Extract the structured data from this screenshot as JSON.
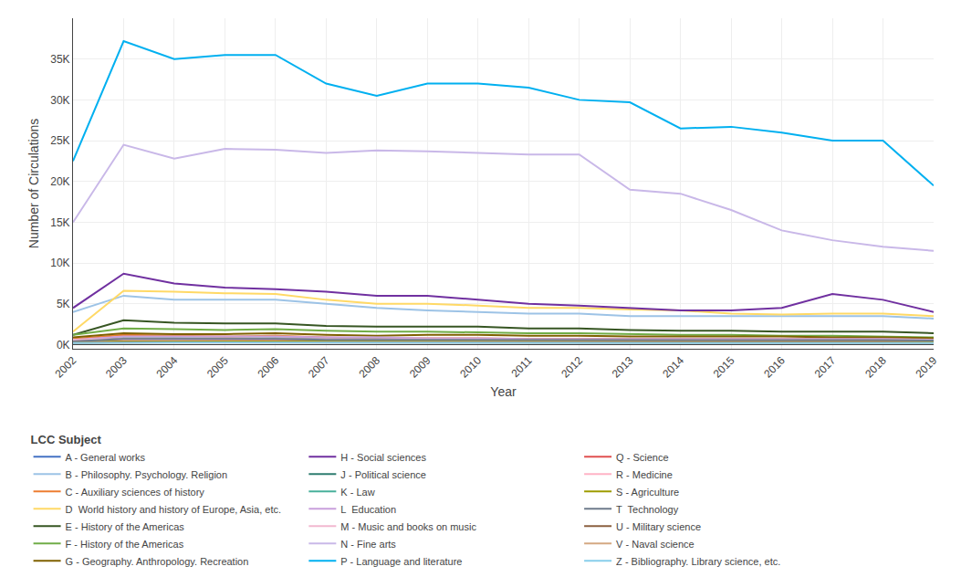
{
  "chart_data": {
    "type": "line",
    "xlabel": "Year",
    "ylabel": "Number of Circulations",
    "legend_title": "LCC Subject",
    "legend": "bottom",
    "grid": true,
    "x": [
      2002,
      2003,
      2004,
      2005,
      2006,
      2007,
      2008,
      2009,
      2010,
      2011,
      2012,
      2013,
      2014,
      2015,
      2016,
      2017,
      2018,
      2019
    ],
    "xlim": [
      2002,
      2019
    ],
    "xticks": [
      2002,
      2003,
      2004,
      2005,
      2006,
      2007,
      2008,
      2009,
      2010,
      2011,
      2012,
      2013,
      2014,
      2015,
      2016,
      2017,
      2018,
      2019
    ],
    "ylim": [
      -500,
      40000
    ],
    "yticks": [
      {
        "value": 0,
        "label": "0K"
      },
      {
        "value": 5000,
        "label": "5K"
      },
      {
        "value": 10000,
        "label": "10K"
      },
      {
        "value": 15000,
        "label": "15K"
      },
      {
        "value": 20000,
        "label": "20K"
      },
      {
        "value": 25000,
        "label": "25K"
      },
      {
        "value": 30000,
        "label": "30K"
      },
      {
        "value": 35000,
        "label": "35K"
      }
    ],
    "series": [
      {
        "name": "A - General works",
        "color": "#4472C4",
        "values": [
          500,
          600,
          550,
          600,
          650,
          600,
          550,
          600,
          600,
          550,
          500,
          500,
          500,
          500,
          500,
          500,
          500,
          400
        ]
      },
      {
        "name": "B - Philosophy. Psychology. Religion",
        "color": "#9DC3E6",
        "values": [
          4000,
          6000,
          5500,
          5500,
          5500,
          5000,
          4500,
          4200,
          4000,
          3800,
          3800,
          3500,
          3500,
          3500,
          3500,
          3500,
          3500,
          3200
        ]
      },
      {
        "name": "C - Auxiliary sciences of history",
        "color": "#ED7D31",
        "values": [
          700,
          1200,
          1100,
          1000,
          1100,
          900,
          800,
          800,
          800,
          700,
          700,
          700,
          700,
          700,
          700,
          700,
          700,
          600
        ]
      },
      {
        "name": "D  World history and history of Europe, Asia, etc.",
        "color": "#FFD966",
        "values": [
          1600,
          6600,
          6500,
          6300,
          6200,
          5500,
          5000,
          5000,
          4800,
          4500,
          4500,
          4300,
          4200,
          3800,
          3700,
          3800,
          3800,
          3500
        ]
      },
      {
        "name": "E - History of the Americas",
        "color": "#375623",
        "values": [
          1200,
          3000,
          2700,
          2600,
          2600,
          2300,
          2200,
          2200,
          2200,
          2000,
          2000,
          1800,
          1700,
          1700,
          1600,
          1600,
          1600,
          1400
        ]
      },
      {
        "name": "F - History of the Americas",
        "color": "#70AD47",
        "values": [
          1200,
          2000,
          1900,
          1800,
          1900,
          1700,
          1600,
          1600,
          1500,
          1400,
          1400,
          1300,
          1200,
          1200,
          1100,
          1100,
          1000,
          900
        ]
      },
      {
        "name": "G - Geography. Anthropology. Recreation",
        "color": "#7F6000",
        "values": [
          900,
          1400,
          1300,
          1300,
          1400,
          1200,
          1100,
          1200,
          1200,
          1100,
          1100,
          1000,
          1000,
          1000,
          1000,
          900,
          900,
          800
        ]
      },
      {
        "name": "H - Social sciences",
        "color": "#7030A0",
        "values": [
          4500,
          8700,
          7500,
          7000,
          6800,
          6500,
          6000,
          6000,
          5500,
          5000,
          4800,
          4500,
          4200,
          4200,
          4500,
          6200,
          5500,
          4000
        ]
      },
      {
        "name": "J - Political science",
        "color": "#2E7D6F",
        "values": [
          500,
          800,
          800,
          750,
          800,
          700,
          700,
          700,
          700,
          600,
          600,
          600,
          600,
          600,
          600,
          600,
          600,
          500
        ]
      },
      {
        "name": "K - Law",
        "color": "#48B09B",
        "values": [
          400,
          500,
          500,
          500,
          500,
          450,
          450,
          450,
          450,
          400,
          400,
          400,
          400,
          400,
          400,
          400,
          400,
          350
        ]
      },
      {
        "name": "L  Education",
        "color": "#C9A0DC",
        "values": [
          600,
          1000,
          1000,
          1000,
          1000,
          900,
          900,
          800,
          800,
          700,
          700,
          700,
          700,
          700,
          700,
          700,
          700,
          600
        ]
      },
      {
        "name": "M - Music and books on music",
        "color": "#F2B8D0",
        "values": [
          600,
          700,
          700,
          700,
          700,
          700,
          700,
          650,
          650,
          600,
          600,
          600,
          600,
          600,
          600,
          600,
          600,
          550
        ]
      },
      {
        "name": "N - Fine arts",
        "color": "#C9B8E8",
        "values": [
          15000,
          24500,
          22800,
          24000,
          23900,
          23500,
          23800,
          23700,
          23500,
          23300,
          23300,
          19000,
          18500,
          16500,
          14000,
          12800,
          12000,
          11500
        ]
      },
      {
        "name": "P - Language and literature",
        "color": "#00B0F0",
        "values": [
          22500,
          37200,
          35000,
          35500,
          35500,
          32000,
          30500,
          32000,
          32000,
          31500,
          30000,
          29700,
          26500,
          26700,
          26000,
          25000,
          25000,
          19500
        ]
      },
      {
        "name": "Q - Science",
        "color": "#E05050",
        "values": [
          400,
          600,
          600,
          600,
          600,
          500,
          500,
          500,
          500,
          450,
          450,
          450,
          450,
          450,
          450,
          450,
          450,
          400
        ]
      },
      {
        "name": "R - Medicine",
        "color": "#FFB3C6",
        "values": [
          300,
          500,
          500,
          500,
          450,
          450,
          400,
          400,
          400,
          380,
          380,
          380,
          380,
          380,
          380,
          380,
          380,
          350
        ]
      },
      {
        "name": "S - Agriculture",
        "color": "#9E9C00",
        "values": [
          300,
          400,
          400,
          400,
          380,
          350,
          350,
          350,
          350,
          330,
          330,
          330,
          330,
          330,
          330,
          330,
          330,
          300
        ]
      },
      {
        "name": "T  Technology",
        "color": "#6E7B8B",
        "values": [
          400,
          700,
          700,
          700,
          700,
          600,
          600,
          600,
          600,
          550,
          550,
          550,
          550,
          550,
          550,
          550,
          550,
          500
        ]
      },
      {
        "name": "U - Military science",
        "color": "#8B6040",
        "values": [
          200,
          300,
          300,
          300,
          300,
          280,
          280,
          280,
          280,
          250,
          250,
          250,
          250,
          250,
          250,
          250,
          250,
          200
        ]
      },
      {
        "name": "V - Naval science",
        "color": "#D4A882",
        "values": [
          200,
          250,
          250,
          250,
          250,
          230,
          230,
          230,
          230,
          210,
          210,
          210,
          210,
          210,
          210,
          210,
          210,
          190
        ]
      },
      {
        "name": "Z - Bibliography. Library science, etc.",
        "color": "#87CEEB",
        "values": [
          200,
          250,
          250,
          250,
          250,
          230,
          230,
          230,
          230,
          210,
          210,
          210,
          210,
          210,
          210,
          210,
          210,
          190
        ]
      }
    ]
  }
}
